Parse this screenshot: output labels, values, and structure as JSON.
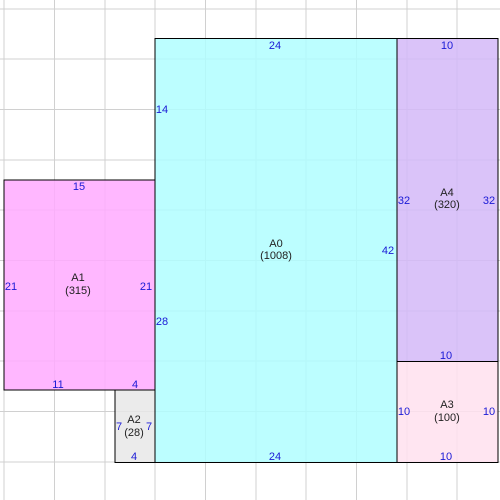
{
  "colors": {
    "grid": "#d0d0d0",
    "outline": "#000000",
    "dimension_text": "#1a1ad6",
    "label_text": "#222222"
  },
  "rooms": [
    {
      "id": "A0",
      "name": "A0",
      "area": "(1008)",
      "fill": "#b0feff",
      "dims": {
        "top": "24",
        "bottom": "24",
        "left_upper": "14",
        "left_lower": "28",
        "right": "42"
      }
    },
    {
      "id": "A1",
      "name": "A1",
      "area": "(315)",
      "fill": "#ffaaff",
      "dims": {
        "top": "15",
        "bottom_left": "11",
        "bottom_right": "4",
        "left": "21",
        "right": "21"
      }
    },
    {
      "id": "A2",
      "name": "A2",
      "area": "(28)",
      "fill": "#e8e8e8",
      "dims": {
        "left": "7",
        "right": "7",
        "bottom": "4"
      }
    },
    {
      "id": "A3",
      "name": "A3",
      "area": "(100)",
      "fill": "#ffe0ee",
      "dims": {
        "left": "10",
        "right": "10",
        "bottom": "10"
      }
    },
    {
      "id": "A4",
      "name": "A4",
      "area": "(320)",
      "fill": "#d4b8f8",
      "dims": {
        "top": "10",
        "bottom": "10",
        "left": "32",
        "right": "32"
      }
    }
  ]
}
